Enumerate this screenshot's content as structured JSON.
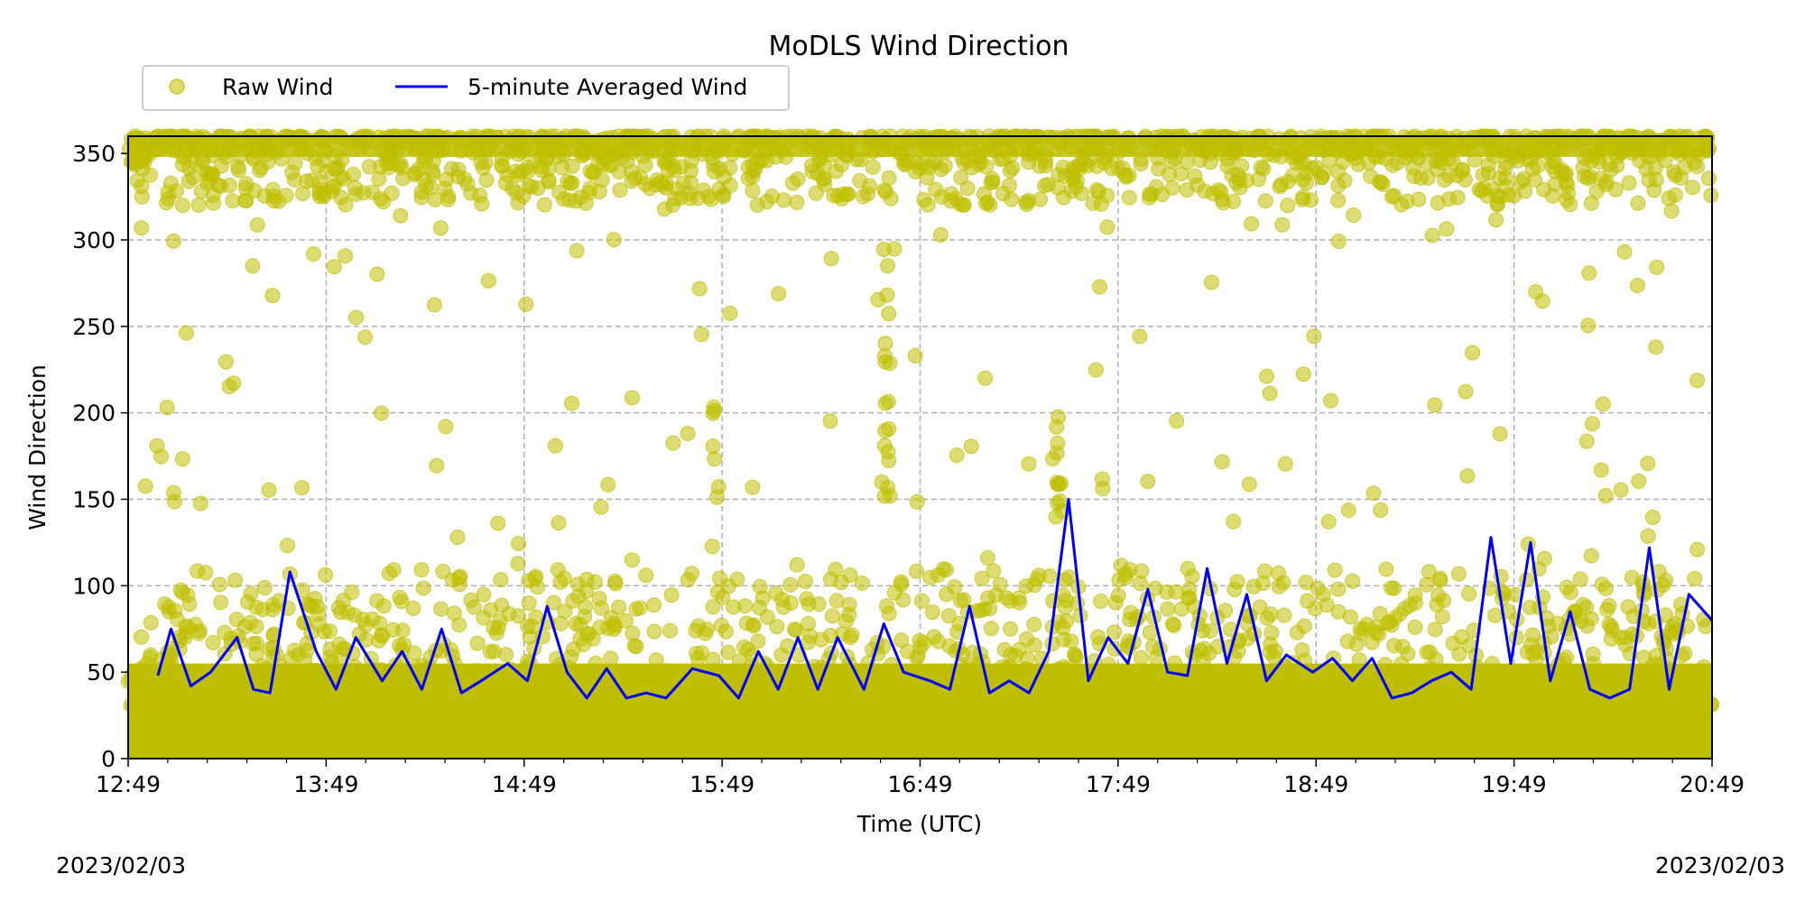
{
  "chart_data": {
    "type": "scatter",
    "title": "MoDLS Wind Direction",
    "xlabel": "Time (UTC)",
    "ylabel": "Wind Direction",
    "x_ticks": [
      "12:49",
      "13:49",
      "14:49",
      "15:49",
      "16:49",
      "17:49",
      "18:49",
      "19:49",
      "20:49"
    ],
    "x_range": [
      "12:49",
      "20:49"
    ],
    "ylim": [
      0,
      360
    ],
    "y_ticks": [
      0,
      50,
      100,
      150,
      200,
      250,
      300,
      350
    ],
    "grid": true,
    "legend": {
      "placement": "top-left, above plot",
      "columns": 2
    },
    "start_date_label": "2023/02/03",
    "end_date_label": "2023/02/03",
    "series": [
      {
        "name": "Raw Wind",
        "kind": "scatter",
        "color": "#bfbf00",
        "description_values": "dense points 0-110 throughout, dense band 320-360 throughout, sparse outliers between"
      },
      {
        "name": "5-minute Averaged Wind",
        "kind": "line",
        "color": "#0000ff",
        "x": [
          "12:58",
          "13:02",
          "13:08",
          "13:14",
          "13:22",
          "13:27",
          "13:32",
          "13:38",
          "13:46",
          "13:52",
          "13:58",
          "14:06",
          "14:12",
          "14:18",
          "14:24",
          "14:30",
          "14:36",
          "14:44",
          "14:50",
          "14:56",
          "15:02",
          "15:08",
          "15:14",
          "15:20",
          "15:26",
          "15:32",
          "15:40",
          "15:48",
          "15:54",
          "16:00",
          "16:06",
          "16:12",
          "16:18",
          "16:24",
          "16:32",
          "16:38",
          "16:44",
          "16:52",
          "16:58",
          "17:04",
          "17:10",
          "17:16",
          "17:22",
          "17:28",
          "17:34",
          "17:40",
          "17:46",
          "17:52",
          "17:58",
          "18:04",
          "18:10",
          "18:16",
          "18:22",
          "18:28",
          "18:34",
          "18:40",
          "18:48",
          "18:54",
          "19:00",
          "19:06",
          "19:12",
          "19:18",
          "19:24",
          "19:30",
          "19:36",
          "19:42",
          "19:48",
          "19:54",
          "20:00",
          "20:06",
          "20:12",
          "20:18",
          "20:24",
          "20:30",
          "20:36",
          "20:42",
          "20:49"
        ],
        "y": [
          48,
          75,
          42,
          50,
          70,
          40,
          38,
          108,
          62,
          40,
          70,
          45,
          62,
          40,
          75,
          38,
          45,
          55,
          45,
          88,
          50,
          35,
          52,
          35,
          38,
          35,
          52,
          48,
          35,
          62,
          40,
          70,
          40,
          70,
          40,
          78,
          50,
          45,
          40,
          88,
          38,
          45,
          38,
          62,
          150,
          45,
          70,
          55,
          98,
          50,
          48,
          110,
          55,
          95,
          45,
          60,
          50,
          58,
          45,
          58,
          35,
          38,
          45,
          50,
          40,
          128,
          55,
          125,
          45,
          85,
          40,
          35,
          40,
          122,
          40,
          95,
          80
        ]
      }
    ]
  }
}
